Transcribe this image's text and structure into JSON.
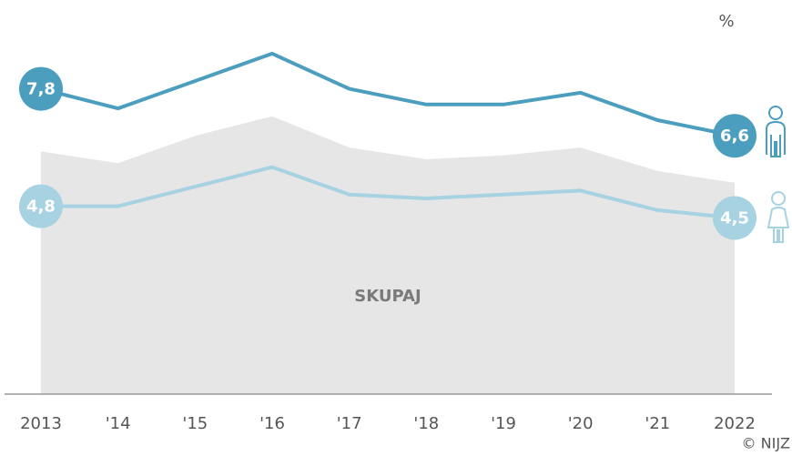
{
  "chart_data": {
    "type": "line",
    "unit": "%",
    "categories": [
      "2013",
      "'14",
      "'15",
      "'16",
      "'17",
      "'18",
      "'19",
      "'20",
      "'21",
      "2022"
    ],
    "series": [
      {
        "name": "SKUPAJ",
        "kind": "area",
        "color": "#e6e6e6",
        "values": [
          6.2,
          5.9,
          6.6,
          7.1,
          6.3,
          6.0,
          6.1,
          6.3,
          5.7,
          5.4
        ]
      },
      {
        "color": "#4c9ebe",
        "values": [
          7.8,
          7.3,
          8.0,
          8.7,
          7.8,
          7.4,
          7.4,
          7.7,
          7.0,
          6.6
        ],
        "value_labels": [
          "7,8",
          null,
          null,
          null,
          null,
          null,
          null,
          null,
          null,
          "6,6"
        ]
      },
      {
        "color": "#a6d2e2",
        "values": [
          4.8,
          4.8,
          5.3,
          5.8,
          5.1,
          5.0,
          5.1,
          5.2,
          4.7,
          4.5
        ],
        "value_labels": [
          "4,8",
          null,
          null,
          null,
          null,
          null,
          null,
          null,
          null,
          "4,5"
        ]
      }
    ],
    "ylim": [
      0,
      9.5
    ],
    "source": "© NIJZ"
  }
}
